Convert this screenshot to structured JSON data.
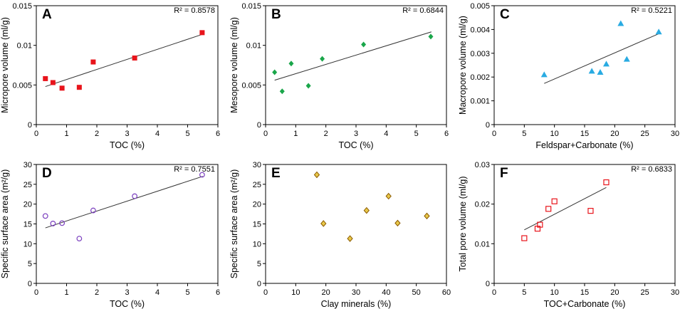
{
  "chart_data": [
    {
      "panel": "A",
      "type": "scatter",
      "xlabel": "TOC (%)",
      "ylabel": "Micropore volume (ml/g)",
      "xlim": [
        0,
        6
      ],
      "ylim": [
        0,
        0.015
      ],
      "xticks": [
        0,
        1,
        2,
        3,
        4,
        5,
        6
      ],
      "yticks": [
        0,
        0.005,
        0.01,
        0.015
      ],
      "ytick_labels": [
        "0",
        "0.005",
        "0.01",
        "0.015"
      ],
      "marker": "square-filled",
      "color": "#e8141b",
      "x": [
        0.3,
        0.55,
        0.85,
        1.42,
        1.88,
        3.25,
        5.48
      ],
      "y": [
        0.0058,
        0.0053,
        0.0046,
        0.0047,
        0.0079,
        0.0084,
        0.0116
      ],
      "fit": [
        [
          0.3,
          0.0048
        ],
        [
          5.5,
          0.0114
        ]
      ],
      "r2": "R² = 0.8578"
    },
    {
      "panel": "B",
      "type": "scatter",
      "xlabel": "TOC (%)",
      "ylabel": "Mesopore volume (ml/g)",
      "xlim": [
        0,
        6
      ],
      "ylim": [
        0,
        0.015
      ],
      "xticks": [
        0,
        1,
        2,
        3,
        4,
        5,
        6
      ],
      "yticks": [
        0,
        0.005,
        0.01,
        0.015
      ],
      "ytick_labels": [
        "0",
        "0.005",
        "0.01",
        "0.015"
      ],
      "marker": "diamond-filled",
      "color": "#1aa64a",
      "x": [
        0.3,
        0.55,
        0.85,
        1.42,
        1.88,
        3.25,
        5.48
      ],
      "y": [
        0.0066,
        0.0042,
        0.0077,
        0.0049,
        0.0083,
        0.0101,
        0.0111
      ],
      "fit": [
        [
          0.3,
          0.0056
        ],
        [
          5.5,
          0.0117
        ]
      ],
      "r2": "R² = 0.6844"
    },
    {
      "panel": "C",
      "type": "scatter",
      "xlabel": "Feldspar+Carbonate (%)",
      "ylabel": "Macropore volume (ml/g)",
      "xlim": [
        0,
        30
      ],
      "ylim": [
        0,
        0.005
      ],
      "xticks": [
        0,
        5,
        10,
        15,
        20,
        25,
        30
      ],
      "yticks": [
        0,
        0.001,
        0.002,
        0.003,
        0.004,
        0.005
      ],
      "ytick_labels": [
        "0",
        "0.001",
        "0.002",
        "0.003",
        "0.004",
        "0.005"
      ],
      "marker": "triangle-filled",
      "color": "#29abe2",
      "x": [
        8.3,
        16.2,
        17.6,
        18.6,
        21.0,
        22.0,
        27.3
      ],
      "y": [
        0.0021,
        0.00225,
        0.0022,
        0.00255,
        0.00425,
        0.00275,
        0.0039
      ],
      "fit": [
        [
          8.3,
          0.00173
        ],
        [
          27.3,
          0.00382
        ]
      ],
      "r2": "R² = 0.5221"
    },
    {
      "panel": "D",
      "type": "scatter",
      "xlabel": "TOC (%)",
      "ylabel": "Specific surface area (m²/g)",
      "xlim": [
        0,
        6
      ],
      "ylim": [
        0,
        30
      ],
      "xticks": [
        0,
        1,
        2,
        3,
        4,
        5,
        6
      ],
      "yticks": [
        0,
        5,
        10,
        15,
        20,
        25,
        30
      ],
      "ytick_labels": [
        "0",
        "5",
        "10",
        "15",
        "20",
        "25",
        "30"
      ],
      "marker": "circle-open",
      "color": "#7b3fbf",
      "x": [
        0.3,
        0.55,
        0.85,
        1.42,
        1.88,
        3.25,
        5.48
      ],
      "y": [
        17.0,
        15.1,
        15.2,
        11.3,
        18.4,
        22.0,
        27.4
      ],
      "fit": [
        [
          0.3,
          14.0
        ],
        [
          5.5,
          27.0
        ]
      ],
      "r2": "R² = 0.7551"
    },
    {
      "panel": "E",
      "type": "scatter",
      "xlabel": "Clay minerals (%)",
      "ylabel": "Specific surface area (m²/g)",
      "xlim": [
        0,
        60
      ],
      "ylim": [
        0,
        30
      ],
      "xticks": [
        0,
        10,
        20,
        30,
        40,
        50,
        60
      ],
      "yticks": [
        0,
        5,
        10,
        15,
        20,
        25,
        30
      ],
      "ytick_labels": [
        "0",
        "5",
        "10",
        "15",
        "20",
        "25",
        "30"
      ],
      "marker": "diamond-open",
      "color": "#8b5a00",
      "fill": "#e8c84a",
      "x": [
        17.0,
        19.2,
        28.0,
        33.5,
        40.8,
        43.8,
        53.5
      ],
      "y": [
        27.4,
        15.1,
        11.3,
        18.4,
        22.0,
        15.2,
        17.0
      ],
      "fit": null,
      "r2": ""
    },
    {
      "panel": "F",
      "type": "scatter",
      "xlabel": "TOC+Carbonate (%)",
      "ylabel": "Total pore volume (ml/g)",
      "xlim": [
        0,
        30
      ],
      "ylim": [
        0,
        0.03
      ],
      "xticks": [
        0,
        5,
        10,
        15,
        20,
        25,
        30
      ],
      "yticks": [
        0,
        0.01,
        0.02,
        0.03
      ],
      "ytick_labels": [
        "0",
        "0.01",
        "0.02",
        "0.03"
      ],
      "marker": "square-open",
      "color": "#e8141b",
      "x": [
        5.0,
        7.2,
        7.6,
        9.0,
        10.0,
        16.0,
        18.6
      ],
      "y": [
        0.0114,
        0.0138,
        0.0148,
        0.0188,
        0.0207,
        0.0183,
        0.0255
      ],
      "fit": [
        [
          5.0,
          0.0135
        ],
        [
          18.6,
          0.0242
        ]
      ],
      "r2": "R² = 0.6833"
    }
  ]
}
